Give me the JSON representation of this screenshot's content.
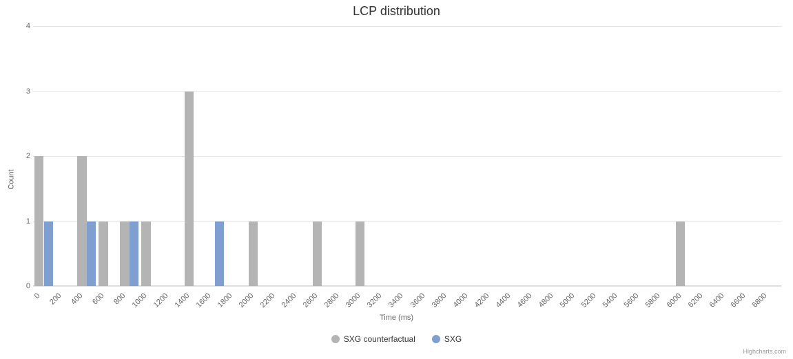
{
  "chart": {
    "type": "bar",
    "title": "LCP distribution",
    "xaxis_title": "Time (ms)",
    "yaxis_title": "Count",
    "background_color": "#ffffff",
    "grid_color": "#e6e6e6",
    "axis_line_color": "#ccd6eb",
    "tick_label_color": "#666666",
    "title_color": "#333333",
    "title_fontsize": 18,
    "axis_title_fontsize": 11,
    "tick_fontsize": 11,
    "legend_fontsize": 12,
    "ylim": [
      0,
      4
    ],
    "ytick_step": 1,
    "yticks": [
      0,
      1,
      2,
      3,
      4
    ],
    "x_categories": [
      "0",
      "200",
      "400",
      "600",
      "800",
      "1000",
      "1200",
      "1400",
      "1600",
      "1800",
      "2000",
      "2200",
      "2400",
      "2600",
      "2800",
      "3000",
      "3200",
      "3400",
      "3600",
      "3800",
      "4000",
      "4200",
      "4400",
      "4600",
      "4800",
      "5000",
      "5200",
      "5400",
      "5600",
      "5800",
      "6000",
      "6200",
      "6400",
      "6600",
      "6800"
    ],
    "series": [
      {
        "name": "SXG counterfactual",
        "color": "#b4b4b4",
        "values": [
          2,
          0,
          2,
          1,
          1,
          1,
          0,
          3,
          0,
          0,
          1,
          0,
          0,
          1,
          0,
          1,
          0,
          0,
          0,
          0,
          0,
          0,
          0,
          0,
          0,
          0,
          0,
          0,
          0,
          0,
          1,
          0,
          0,
          0,
          0
        ]
      },
      {
        "name": "SXG",
        "color": "#7f9fd1",
        "values": [
          1,
          0,
          1,
          0,
          1,
          0,
          0,
          0,
          1,
          0,
          0,
          0,
          0,
          0,
          0,
          0,
          0,
          0,
          0,
          0,
          0,
          0,
          0,
          0,
          0,
          0,
          0,
          0,
          0,
          0,
          0,
          0,
          0,
          0,
          0
        ]
      }
    ],
    "bar_group_width": 0.85,
    "credits": "Highcharts.com"
  }
}
